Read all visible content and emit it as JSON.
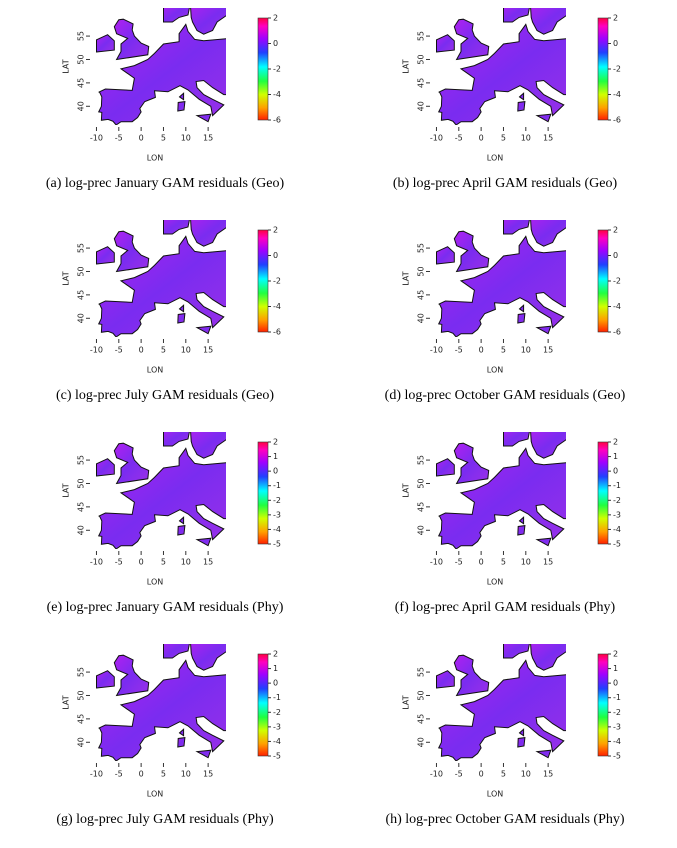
{
  "panels": [
    {
      "caption": "(a) log-prec January GAM residuals (Geo)",
      "xlabel": "LON",
      "ylabel": "LAT",
      "xlim": [
        -11,
        19
      ],
      "ylim": [
        36,
        61
      ],
      "xticks": [
        -10,
        -5,
        0,
        5,
        10,
        15
      ],
      "yticks": [
        40,
        45,
        50,
        55
      ],
      "clim": [
        -6,
        2
      ],
      "cticks": [
        2,
        0,
        -2,
        -4,
        -6
      ]
    },
    {
      "caption": "(b) log-prec April GAM residuals (Geo)",
      "xlabel": "LON",
      "ylabel": "LAT",
      "xlim": [
        -11,
        19
      ],
      "ylim": [
        36,
        61
      ],
      "xticks": [
        -10,
        -5,
        0,
        5,
        10,
        15
      ],
      "yticks": [
        40,
        45,
        50,
        55
      ],
      "clim": [
        -6,
        2
      ],
      "cticks": [
        2,
        0,
        -2,
        -4,
        -6
      ]
    },
    {
      "caption": "(c) log-prec July GAM residuals (Geo)",
      "xlabel": "LON",
      "ylabel": "LAT",
      "xlim": [
        -11,
        19
      ],
      "ylim": [
        36,
        61
      ],
      "xticks": [
        -10,
        -5,
        0,
        5,
        10,
        15
      ],
      "yticks": [
        40,
        45,
        50,
        55
      ],
      "clim": [
        -6,
        2
      ],
      "cticks": [
        2,
        0,
        -2,
        -4,
        -6
      ]
    },
    {
      "caption": "(d) log-prec October GAM residuals (Geo)",
      "xlabel": "LON",
      "ylabel": "LAT",
      "xlim": [
        -11,
        19
      ],
      "ylim": [
        36,
        61
      ],
      "xticks": [
        -10,
        -5,
        0,
        5,
        10,
        15
      ],
      "yticks": [
        40,
        45,
        50,
        55
      ],
      "clim": [
        -6,
        2
      ],
      "cticks": [
        2,
        0,
        -2,
        -4,
        -6
      ]
    },
    {
      "caption": "(e) log-prec January GAM residuals (Phy)",
      "xlabel": "LON",
      "ylabel": "LAT",
      "xlim": [
        -11,
        19
      ],
      "ylim": [
        36,
        61
      ],
      "xticks": [
        -10,
        -5,
        0,
        5,
        10,
        15
      ],
      "yticks": [
        40,
        45,
        50,
        55
      ],
      "clim": [
        -5,
        2
      ],
      "cticks": [
        2,
        1,
        0,
        -1,
        -2,
        -3,
        -4,
        -5
      ]
    },
    {
      "caption": "(f) log-prec April GAM residuals (Phy)",
      "xlabel": "LON",
      "ylabel": "LAT",
      "xlim": [
        -11,
        19
      ],
      "ylim": [
        36,
        61
      ],
      "xticks": [
        -10,
        -5,
        0,
        5,
        10,
        15
      ],
      "yticks": [
        40,
        45,
        50,
        55
      ],
      "clim": [
        -5,
        2
      ],
      "cticks": [
        2,
        1,
        0,
        -1,
        -2,
        -3,
        -4,
        -5
      ]
    },
    {
      "caption": "(g) log-prec July GAM residuals (Phy)",
      "xlabel": "LON",
      "ylabel": "LAT",
      "xlim": [
        -11,
        19
      ],
      "ylim": [
        36,
        61
      ],
      "xticks": [
        -10,
        -5,
        0,
        5,
        10,
        15
      ],
      "yticks": [
        40,
        45,
        50,
        55
      ],
      "clim": [
        -5,
        2
      ],
      "cticks": [
        2,
        1,
        0,
        -1,
        -2,
        -3,
        -4,
        -5
      ]
    },
    {
      "caption": "(h) log-prec October GAM residuals (Phy)",
      "xlabel": "LON",
      "ylabel": "LAT",
      "xlim": [
        -11,
        19
      ],
      "ylim": [
        36,
        61
      ],
      "xticks": [
        -10,
        -5,
        0,
        5,
        10,
        15
      ],
      "yticks": [
        40,
        45,
        50,
        55
      ],
      "clim": [
        -5,
        2
      ],
      "cticks": [
        2,
        1,
        0,
        -1,
        -2,
        -3,
        -4,
        -5
      ]
    }
  ]
}
